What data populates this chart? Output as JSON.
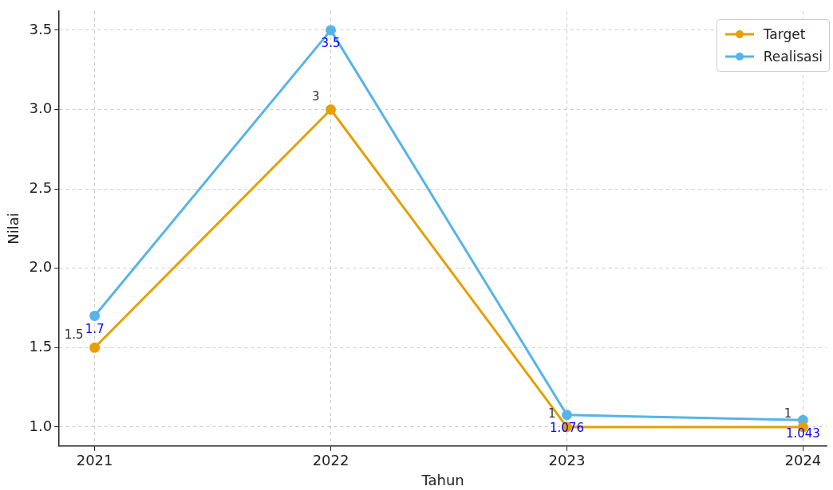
{
  "chart_data": {
    "type": "line",
    "xlabel": "Tahun",
    "ylabel": "Nilai",
    "x": [
      2021,
      2022,
      2023,
      2024
    ],
    "series": [
      {
        "name": "Target",
        "color": "#e69f00",
        "values": [
          1.5,
          3,
          1,
          1
        ]
      },
      {
        "name": "Realisasi",
        "color": "#56b4e9",
        "values": [
          1.7,
          3.5,
          1.076,
          1.043
        ]
      }
    ],
    "xlim": [
      2020.85,
      2024.1
    ],
    "xticks": [
      2021,
      2022,
      2023,
      2024
    ],
    "ylim": [
      0.88,
      3.62
    ],
    "yticks": [
      {
        "value": 1,
        "label": "1.0"
      },
      {
        "value": 1.5,
        "label": "1.5"
      },
      {
        "value": 2,
        "label": "2.0"
      },
      {
        "value": 2.5,
        "label": "2.5"
      },
      {
        "value": 3,
        "label": "3.0"
      },
      {
        "value": 3.5,
        "label": "3.5"
      }
    ],
    "grid": true,
    "legend": "top right",
    "marker": "circle",
    "line_style": "solid",
    "data_labels": true
  }
}
